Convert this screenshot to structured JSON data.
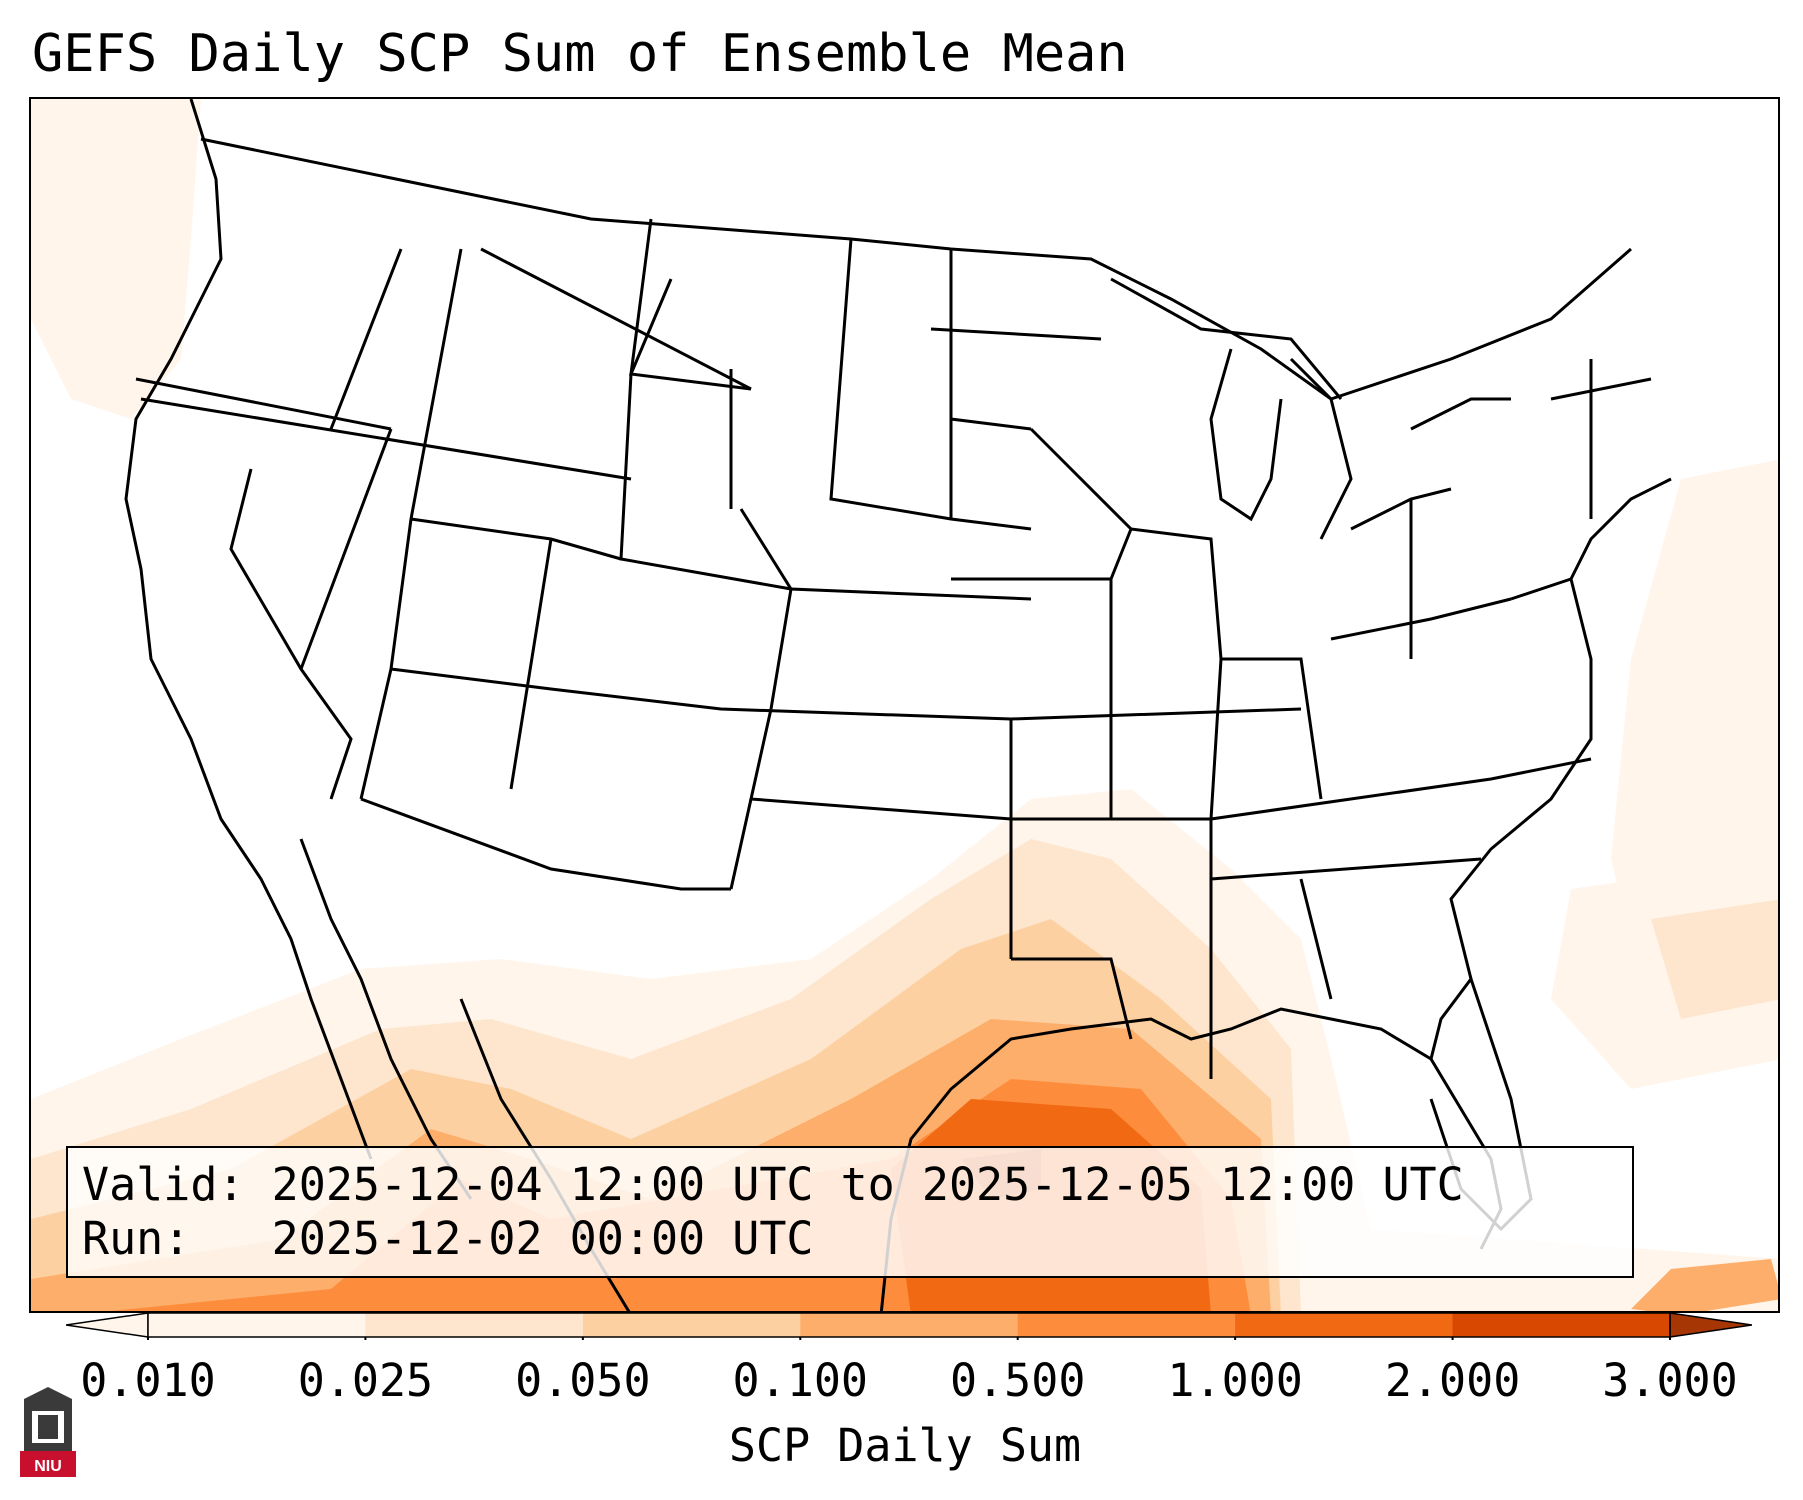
{
  "title": "GEFS Daily SCP Sum of Ensemble Mean",
  "info": {
    "valid_label": "Valid:",
    "valid_value": "2025-12-04 12:00 UTC to 2025-12-05 12:00 UTC",
    "run_label": "Run:",
    "run_value": "2025-12-02 00:00 UTC"
  },
  "colorbar": {
    "title": "SCP Daily Sum",
    "ticks": [
      "0.010",
      "0.025",
      "0.050",
      "0.100",
      "0.500",
      "1.000",
      "2.000",
      "3.000"
    ],
    "colors": [
      "#fff5eb",
      "#fee6ce",
      "#fdd0a2",
      "#fdae6b",
      "#fd8d3c",
      "#f16913",
      "#d94801",
      "#a63603"
    ],
    "extend": "both"
  },
  "logo": {
    "text": "NIU",
    "icon": "niu-logo-icon",
    "color": "#c8102e"
  },
  "map": {
    "region": "Contiguous United States",
    "field": "SCP daily sum shading, maximum over the northwestern Gulf of Mexico off the Texas coast"
  }
}
